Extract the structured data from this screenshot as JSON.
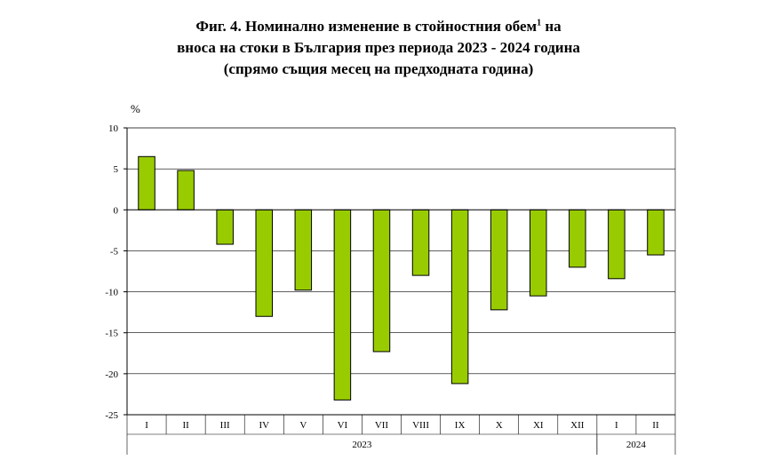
{
  "title": {
    "line1": "Фиг. 4. Номинално изменение в стойностния обем",
    "footnote_mark": "1",
    "line1_end": " на",
    "line2": "вноса на стоки в България през периода 2023 - 2024 година",
    "line3": "(спрямо същия месец на предходната година)"
  },
  "chart_data": {
    "type": "bar",
    "unit_label": "%",
    "categories": [
      "I",
      "II",
      "III",
      "IV",
      "V",
      "VI",
      "VII",
      "VIII",
      "IX",
      "X",
      "XI",
      "XII",
      "I",
      "II"
    ],
    "groups": [
      {
        "label": "2023",
        "start": 0,
        "end": 11
      },
      {
        "label": "2024",
        "start": 12,
        "end": 13
      }
    ],
    "values": [
      6.5,
      4.8,
      -4.2,
      -13.0,
      -9.8,
      -23.2,
      -17.3,
      -8.0,
      -21.2,
      -12.2,
      -10.5,
      -7.0,
      -8.4,
      -5.5
    ],
    "ylim": [
      -25,
      10
    ],
    "yticks": [
      10,
      5,
      0,
      -5,
      -10,
      -15,
      -20,
      -25
    ],
    "grid": true,
    "bar_color": "#99cc00",
    "bar_outline": "#000000"
  }
}
